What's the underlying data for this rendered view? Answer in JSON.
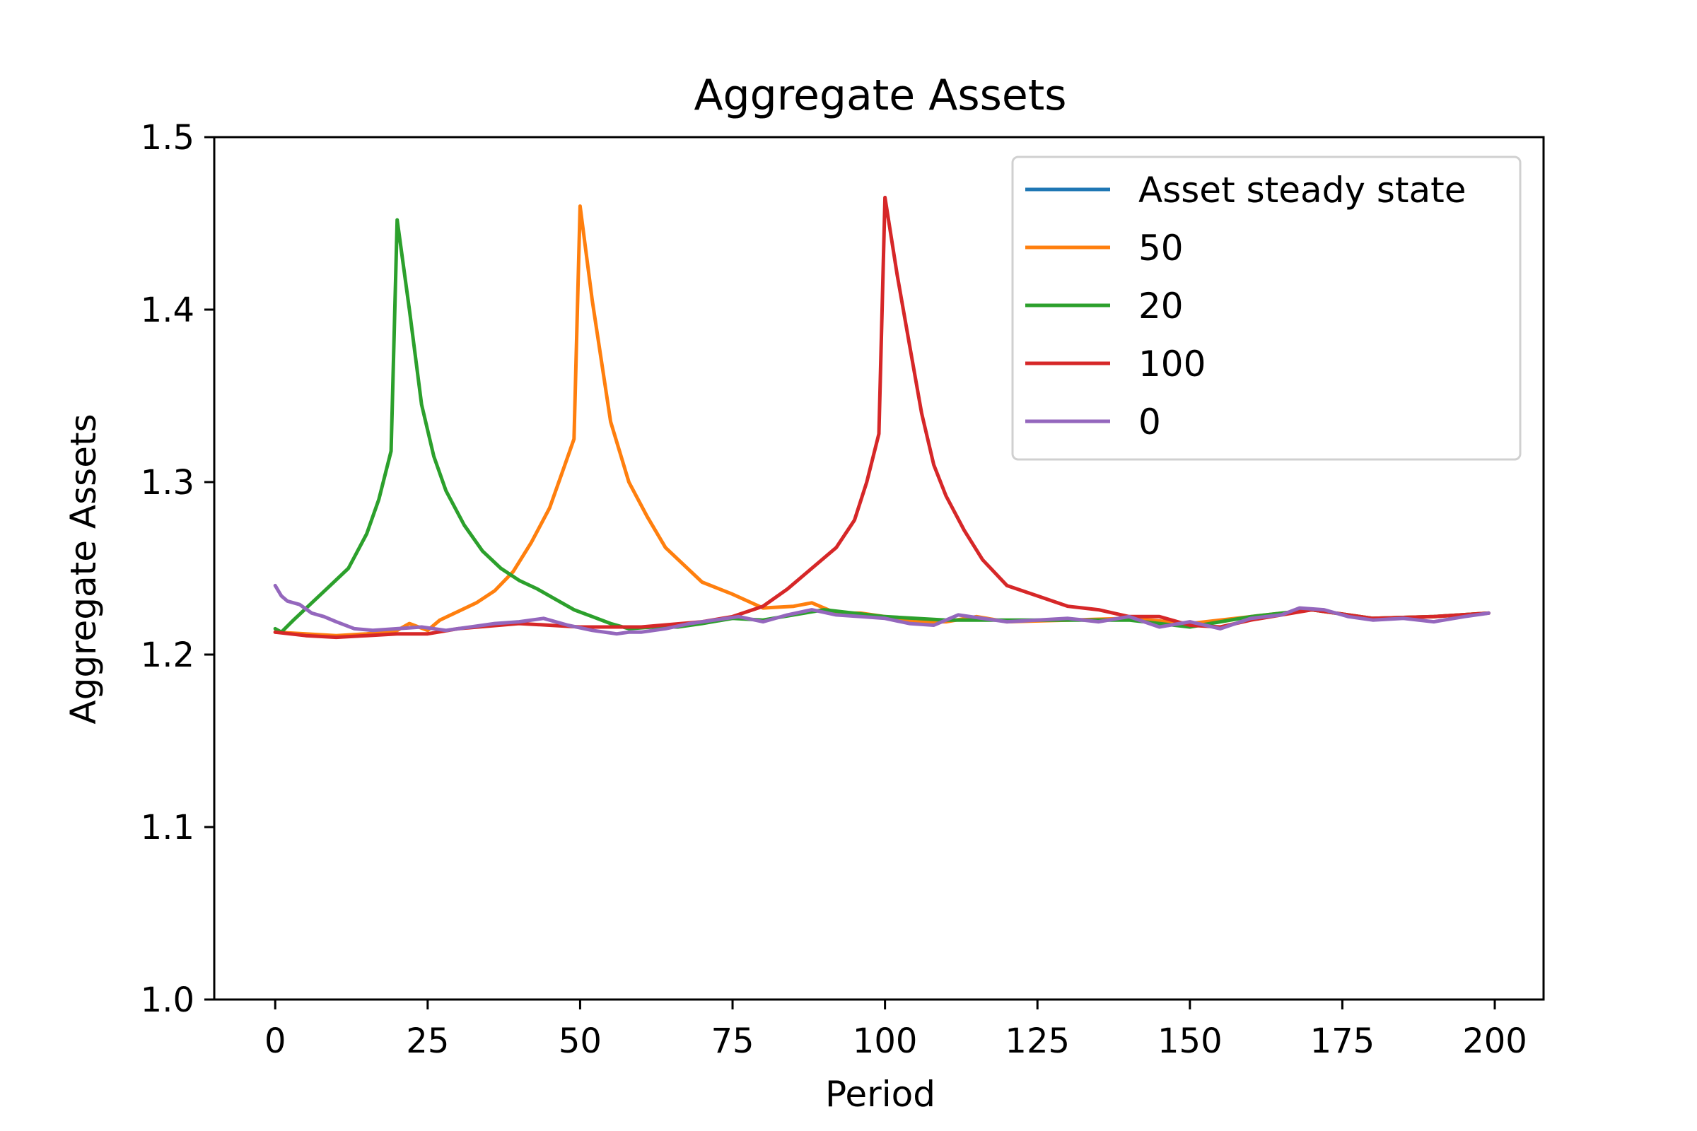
{
  "chart_data": {
    "type": "line",
    "title": "Aggregate Assets",
    "xlabel": "Period",
    "ylabel": "Aggregate Assets",
    "xlim": [
      -10,
      208
    ],
    "ylim": [
      1.0,
      1.5
    ],
    "xticks": [
      0,
      25,
      50,
      75,
      100,
      125,
      150,
      175,
      200
    ],
    "xtick_labels": [
      "0",
      "25",
      "50",
      "75",
      "100",
      "125",
      "150",
      "175",
      "200"
    ],
    "yticks": [
      1.0,
      1.1,
      1.2,
      1.3,
      1.4,
      1.5
    ],
    "ytick_labels": [
      "1.0",
      "1.1",
      "1.2",
      "1.3",
      "1.4",
      "1.5"
    ],
    "grid": false,
    "legend_position": "top-right",
    "series": [
      {
        "name": "Asset steady state",
        "color": "#1f77b4",
        "x": [],
        "y": []
      },
      {
        "name": "50",
        "color": "#ff7f0e",
        "x": [
          0,
          5,
          10,
          15,
          20,
          22,
          25,
          27,
          30,
          33,
          36,
          39,
          42,
          45,
          47,
          49,
          50,
          52,
          55,
          58,
          61,
          64,
          67,
          70,
          75,
          80,
          85,
          88,
          92,
          96,
          100,
          105,
          110,
          115,
          120,
          130,
          140,
          150,
          160,
          170,
          180,
          190,
          199
        ],
        "y": [
          1.213,
          1.212,
          1.211,
          1.212,
          1.214,
          1.218,
          1.214,
          1.22,
          1.225,
          1.23,
          1.237,
          1.248,
          1.265,
          1.285,
          1.305,
          1.325,
          1.46,
          1.405,
          1.335,
          1.3,
          1.28,
          1.262,
          1.252,
          1.242,
          1.235,
          1.227,
          1.228,
          1.23,
          1.224,
          1.224,
          1.222,
          1.219,
          1.219,
          1.222,
          1.219,
          1.22,
          1.221,
          1.218,
          1.222,
          1.226,
          1.221,
          1.222,
          1.224
        ]
      },
      {
        "name": "20",
        "color": "#2ca02c",
        "x": [
          0,
          1,
          3,
          6,
          9,
          12,
          15,
          17,
          19,
          20,
          22,
          24,
          26,
          28,
          31,
          34,
          37,
          40,
          43,
          46,
          49,
          52,
          55,
          58,
          62,
          66,
          70,
          75,
          80,
          90,
          100,
          110,
          120,
          130,
          140,
          150,
          160,
          170,
          180,
          190,
          199
        ],
        "y": [
          1.215,
          1.213,
          1.22,
          1.23,
          1.24,
          1.25,
          1.27,
          1.29,
          1.318,
          1.452,
          1.4,
          1.345,
          1.315,
          1.295,
          1.275,
          1.26,
          1.25,
          1.243,
          1.238,
          1.232,
          1.226,
          1.222,
          1.218,
          1.215,
          1.216,
          1.216,
          1.218,
          1.221,
          1.22,
          1.226,
          1.222,
          1.22,
          1.22,
          1.22,
          1.22,
          1.216,
          1.222,
          1.226,
          1.221,
          1.222,
          1.224
        ]
      },
      {
        "name": "100",
        "color": "#d62728",
        "x": [
          0,
          5,
          10,
          15,
          20,
          25,
          30,
          40,
          50,
          60,
          70,
          75,
          80,
          84,
          88,
          92,
          95,
          97,
          99,
          100,
          102,
          104,
          106,
          108,
          110,
          113,
          116,
          120,
          125,
          130,
          135,
          140,
          145,
          150,
          155,
          160,
          170,
          180,
          190,
          199
        ],
        "y": [
          1.213,
          1.211,
          1.21,
          1.211,
          1.212,
          1.212,
          1.215,
          1.218,
          1.216,
          1.216,
          1.219,
          1.222,
          1.228,
          1.238,
          1.25,
          1.262,
          1.278,
          1.3,
          1.328,
          1.465,
          1.42,
          1.38,
          1.34,
          1.31,
          1.292,
          1.272,
          1.255,
          1.24,
          1.234,
          1.228,
          1.226,
          1.222,
          1.222,
          1.217,
          1.216,
          1.22,
          1.226,
          1.221,
          1.222,
          1.224
        ]
      },
      {
        "name": "0",
        "color": "#9467bd",
        "x": [
          0,
          1,
          2,
          4,
          6,
          8,
          10,
          13,
          16,
          20,
          24,
          28,
          32,
          36,
          40,
          44,
          48,
          52,
          56,
          58,
          60,
          64,
          68,
          72,
          76,
          80,
          84,
          88,
          92,
          96,
          100,
          104,
          108,
          112,
          116,
          120,
          125,
          130,
          135,
          140,
          145,
          150,
          155,
          160,
          165,
          168,
          172,
          176,
          180,
          185,
          190,
          195,
          199
        ],
        "y": [
          1.24,
          1.234,
          1.231,
          1.229,
          1.224,
          1.222,
          1.219,
          1.215,
          1.214,
          1.215,
          1.216,
          1.214,
          1.216,
          1.218,
          1.219,
          1.221,
          1.217,
          1.214,
          1.212,
          1.213,
          1.213,
          1.215,
          1.218,
          1.22,
          1.222,
          1.219,
          1.223,
          1.226,
          1.223,
          1.222,
          1.221,
          1.218,
          1.217,
          1.223,
          1.221,
          1.219,
          1.22,
          1.221,
          1.219,
          1.222,
          1.216,
          1.219,
          1.215,
          1.221,
          1.223,
          1.227,
          1.226,
          1.222,
          1.22,
          1.221,
          1.219,
          1.222,
          1.224
        ]
      }
    ]
  }
}
